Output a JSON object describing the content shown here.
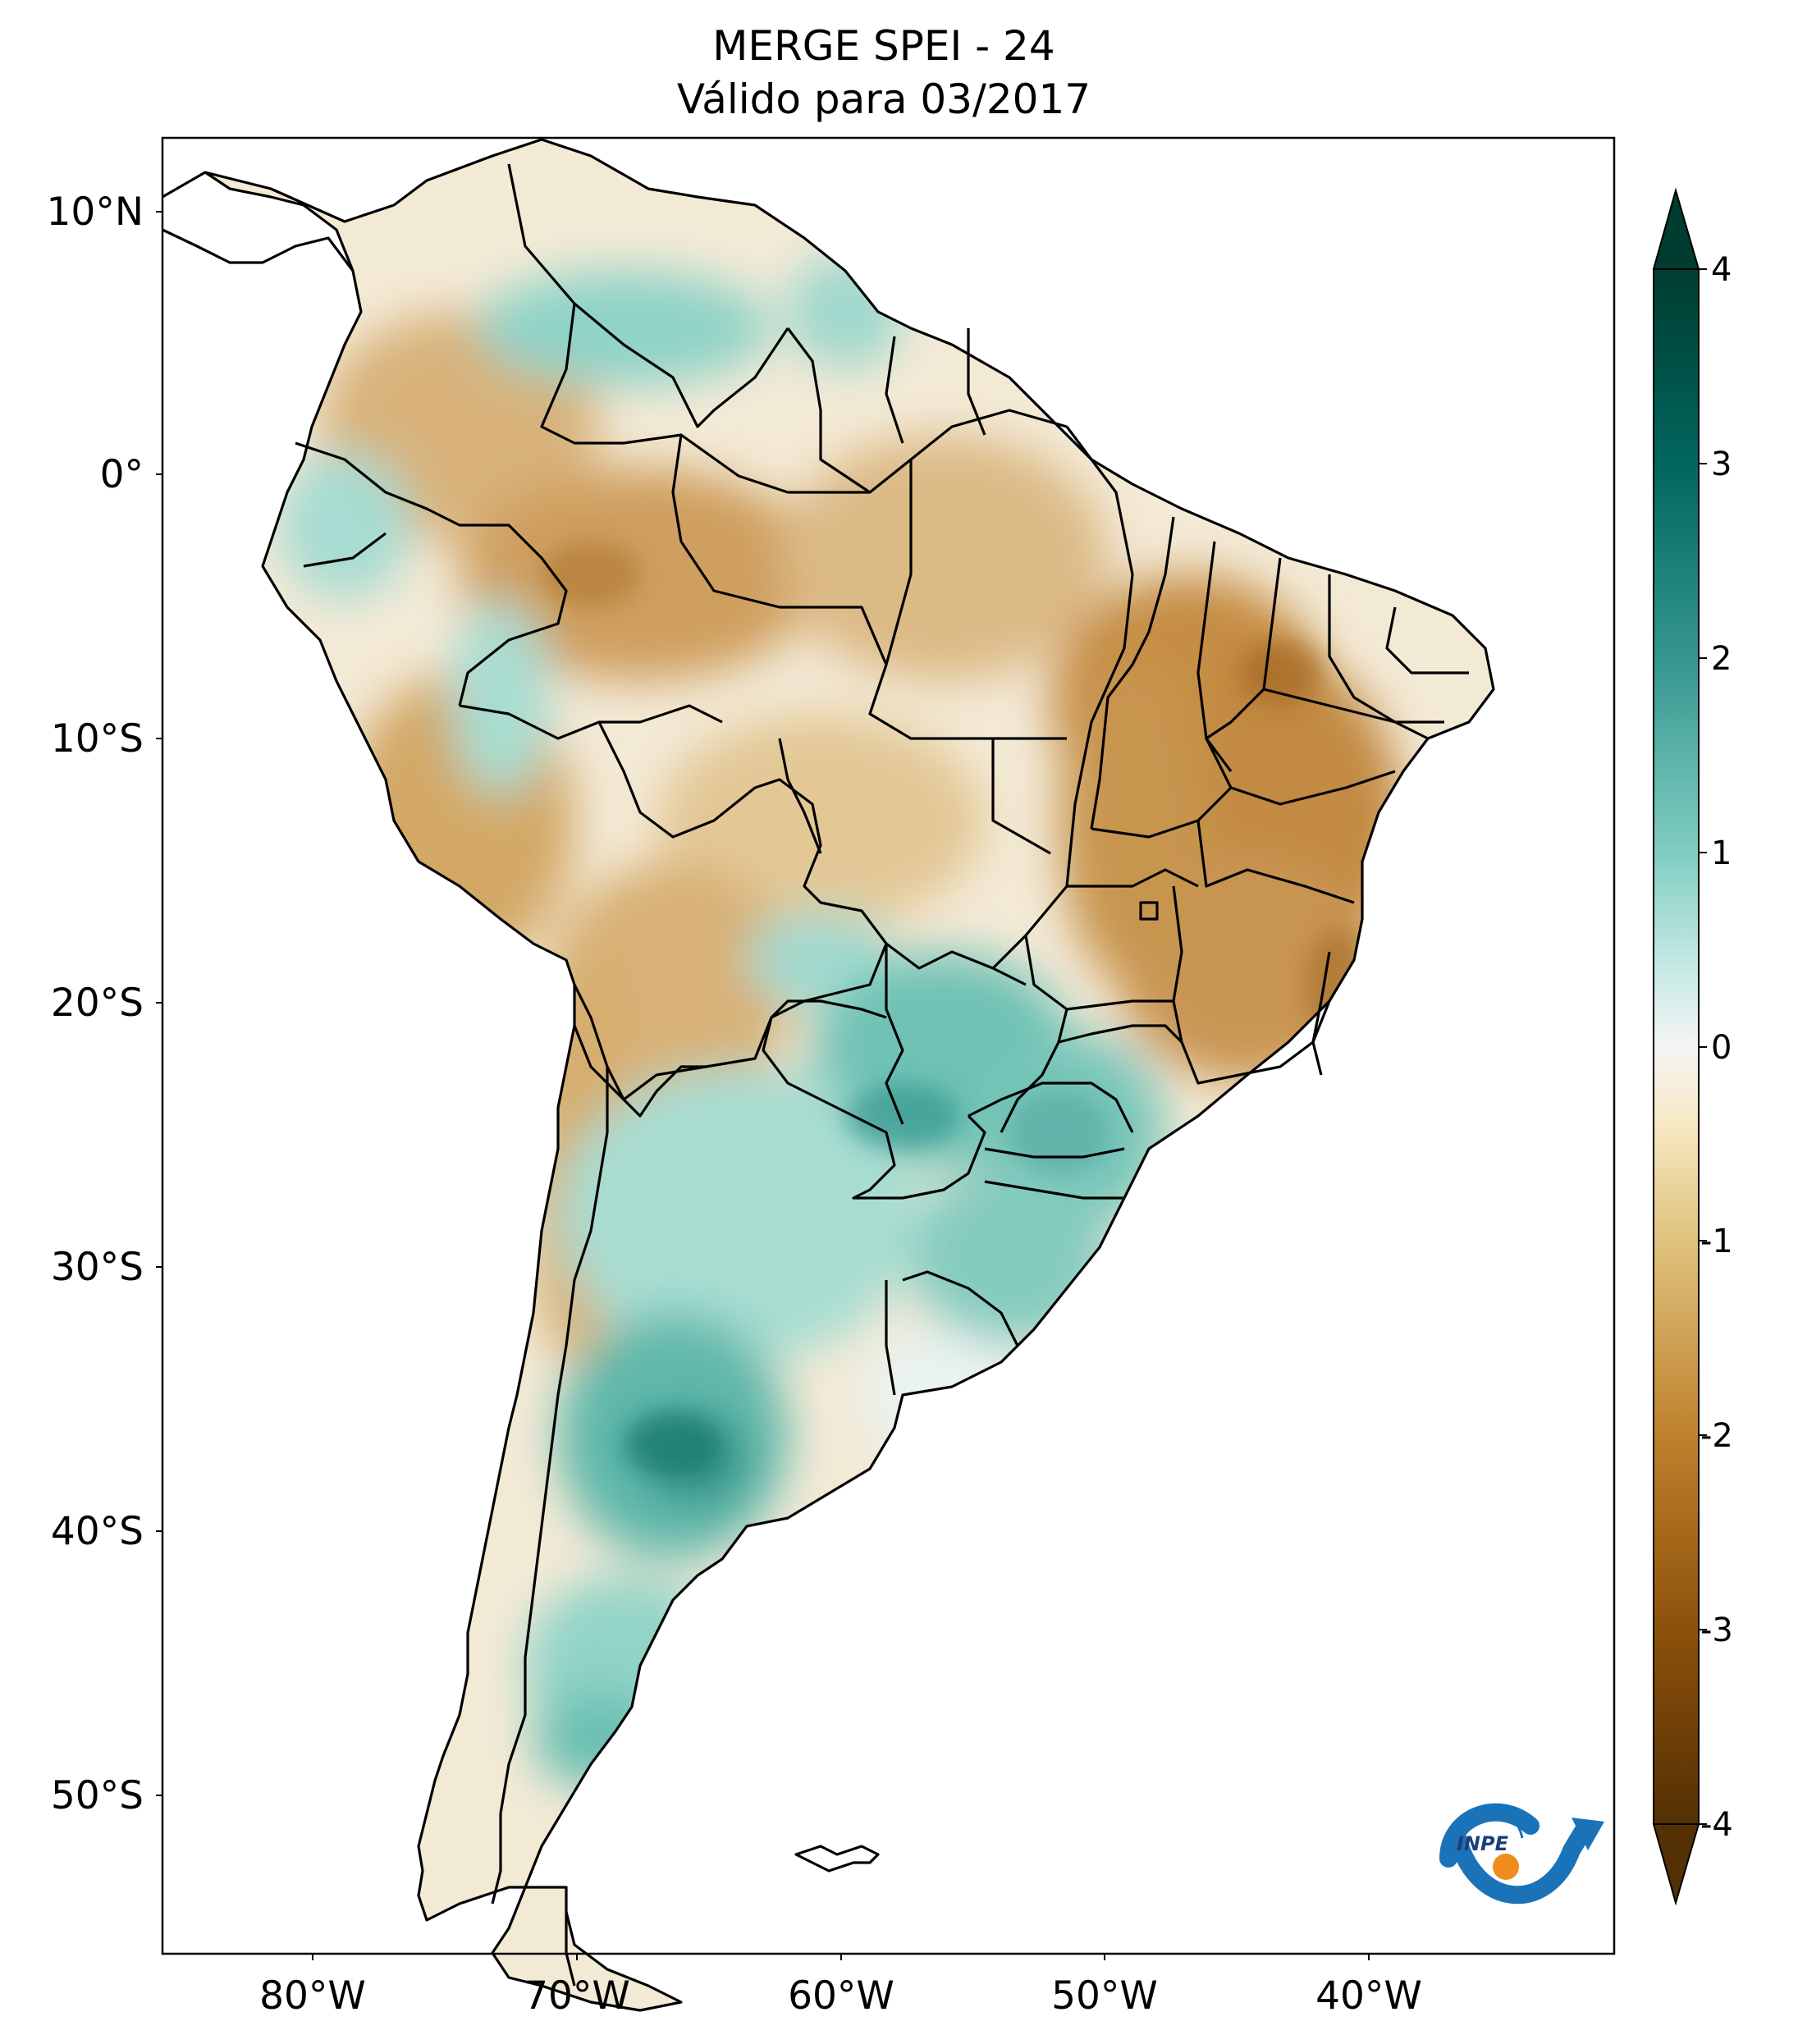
{
  "title": {
    "line1": "MERGE   SPEI - 24",
    "line2": "Válido para 03/2017"
  },
  "map": {
    "region": "South America",
    "lon_range": [
      -85,
      -30
    ],
    "lat_range": [
      -56,
      13
    ],
    "lat_ticks": [
      "10°N",
      "0°",
      "10°S",
      "20°S",
      "30°S",
      "40°S",
      "50°S"
    ],
    "lon_ticks": [
      "80°W",
      "70°W",
      "60°W",
      "50°W",
      "40°W"
    ],
    "ocean_color": "#ffffff",
    "border_color": "#000000"
  },
  "colorbar": {
    "ticks": [
      "4",
      "3",
      "2",
      "1",
      "0",
      "-1",
      "-2",
      "-3",
      "-4"
    ],
    "range": [
      -4,
      4
    ],
    "extend": "both",
    "colors": {
      "neg4": "#543005",
      "neg3": "#8c510a",
      "neg2": "#bf812d",
      "neg1": "#dfc27d",
      "neg05": "#f6e8c3",
      "zero": "#f5f5f5",
      "pos05": "#c7eae5",
      "pos1": "#80cdc1",
      "pos2": "#35978f",
      "pos3": "#01665e",
      "pos4": "#003c30"
    }
  },
  "logo": {
    "icon": "inpe-logo",
    "text": "INPE",
    "colors": {
      "arc": "#1a73b8",
      "dot": "#f08c1e"
    }
  }
}
